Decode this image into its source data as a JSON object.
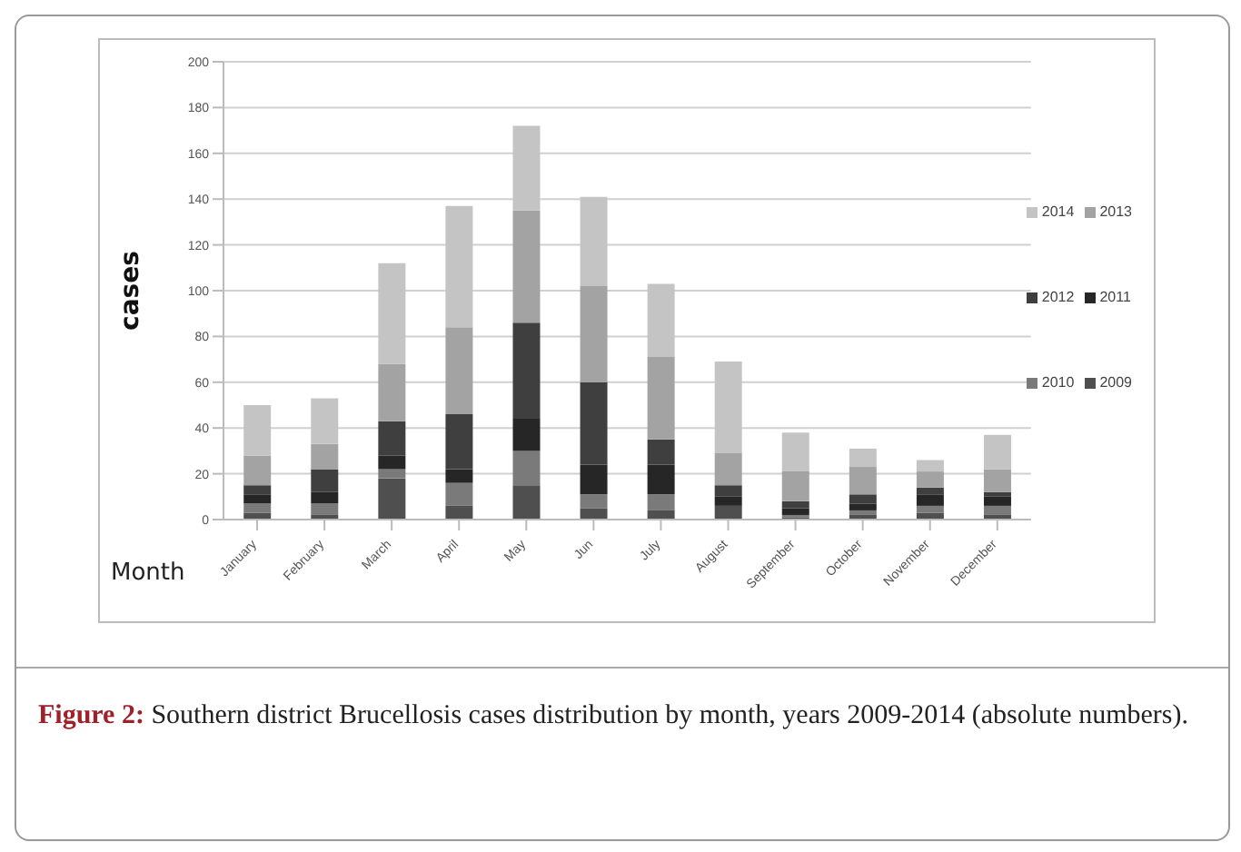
{
  "chart_data": {
    "type": "bar",
    "stacked": true,
    "xlabel": "Month",
    "ylabel": "cases",
    "categories": [
      "January",
      "February",
      "March",
      "April",
      "May",
      "Jun",
      "July",
      "August",
      "September",
      "October",
      "November",
      "December"
    ],
    "series": [
      {
        "name": "2009",
        "color": "#4f4f4f",
        "values": [
          3,
          2,
          18,
          6,
          15,
          5,
          4,
          6,
          1,
          2,
          3,
          2
        ]
      },
      {
        "name": "2010",
        "color": "#7a7a7a",
        "values": [
          4,
          5,
          4,
          10,
          15,
          6,
          7,
          0,
          1,
          2,
          3,
          4
        ]
      },
      {
        "name": "2011",
        "color": "#262626",
        "values": [
          4,
          5,
          6,
          6,
          14,
          13,
          13,
          4,
          3,
          3,
          5,
          4
        ]
      },
      {
        "name": "2012",
        "color": "#3f3f3f",
        "values": [
          4,
          10,
          15,
          24,
          42,
          36,
          11,
          5,
          3,
          4,
          3,
          2
        ]
      },
      {
        "name": "2013",
        "color": "#a3a3a3",
        "values": [
          13,
          11,
          25,
          38,
          49,
          42,
          36,
          14,
          13,
          12,
          7,
          10
        ]
      },
      {
        "name": "2014",
        "color": "#c4c4c4",
        "values": [
          22,
          20,
          44,
          53,
          37,
          39,
          32,
          40,
          17,
          8,
          5,
          15
        ]
      }
    ],
    "ylim": [
      0,
      200
    ],
    "yticks": [
      0,
      20,
      40,
      60,
      80,
      100,
      120,
      140,
      160,
      180,
      200
    ],
    "grid": "y",
    "legend": "right",
    "annotations": [
      "Figure 2: Southern district Brucellosis cases distribution by month, years 2009-2014 (absolute numbers)."
    ]
  }
}
